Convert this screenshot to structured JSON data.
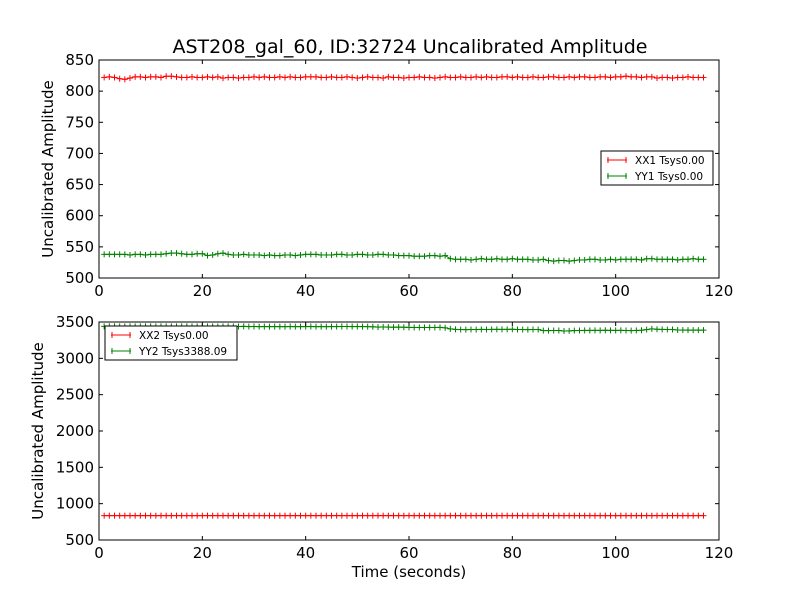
{
  "figure": {
    "title": "AST208_gal_60, ID:32724 Uncalibrated Amplitude"
  },
  "chart_data": [
    {
      "type": "line",
      "title": "AST208_gal_60, ID:32724 Uncalibrated Amplitude",
      "xlabel": "",
      "ylabel": "Uncalibrated Amplitude",
      "xlim": [
        0,
        120
      ],
      "ylim": [
        500,
        850
      ],
      "xticks": [
        0,
        20,
        40,
        60,
        80,
        100,
        120
      ],
      "yticks": [
        500,
        550,
        600,
        650,
        700,
        750,
        800,
        850
      ],
      "grid": false,
      "legend_position": "center-right",
      "marker": "plus",
      "x": [
        1,
        2,
        3,
        4,
        5,
        6,
        7,
        8,
        9,
        10,
        11,
        12,
        13,
        14,
        15,
        16,
        17,
        18,
        19,
        20,
        21,
        22,
        23,
        24,
        25,
        26,
        27,
        28,
        29,
        30,
        31,
        32,
        33,
        34,
        35,
        36,
        37,
        38,
        39,
        40,
        41,
        42,
        43,
        44,
        45,
        46,
        47,
        48,
        49,
        50,
        51,
        52,
        53,
        54,
        55,
        56,
        57,
        58,
        59,
        60,
        61,
        62,
        63,
        64,
        65,
        66,
        67,
        68,
        69,
        70,
        71,
        72,
        73,
        74,
        75,
        76,
        77,
        78,
        79,
        80,
        81,
        82,
        83,
        84,
        85,
        86,
        87,
        88,
        89,
        90,
        91,
        92,
        93,
        94,
        95,
        96,
        97,
        98,
        99,
        100,
        101,
        102,
        103,
        104,
        105,
        106,
        107,
        108,
        109,
        110,
        111,
        112,
        113,
        114,
        115,
        116,
        117
      ],
      "series": [
        {
          "name": "XX1 Tsys0.00",
          "color": "#ff0000",
          "values": [
            822,
            823,
            822,
            820,
            819,
            821,
            823,
            823,
            822,
            823,
            823,
            822,
            824,
            824,
            823,
            822,
            822,
            823,
            822,
            822,
            823,
            822,
            823,
            821,
            822,
            822,
            821,
            822,
            822,
            823,
            822,
            823,
            822,
            822,
            823,
            822,
            823,
            822,
            822,
            823,
            823,
            823,
            822,
            822,
            823,
            822,
            822,
            823,
            822,
            821,
            822,
            823,
            822,
            822,
            821,
            823,
            822,
            822,
            821,
            822,
            822,
            823,
            822,
            822,
            821,
            822,
            823,
            822,
            822,
            823,
            822,
            822,
            823,
            822,
            823,
            822,
            822,
            823,
            823,
            822,
            823,
            822,
            822,
            823,
            822,
            822,
            823,
            823,
            822,
            822,
            823,
            822,
            823,
            823,
            822,
            822,
            823,
            823,
            822,
            823,
            823,
            824,
            823,
            823,
            822,
            823,
            823,
            821,
            822,
            822,
            821,
            822,
            822,
            823,
            822,
            822,
            822
          ]
        },
        {
          "name": "YY1 Tsys0.00",
          "color": "#008000",
          "values": [
            538,
            538,
            538,
            538,
            538,
            537,
            538,
            538,
            537,
            538,
            538,
            538,
            539,
            540,
            540,
            539,
            538,
            538,
            539,
            539,
            536,
            537,
            539,
            540,
            538,
            537,
            537,
            538,
            537,
            537,
            537,
            536,
            537,
            536,
            536,
            537,
            537,
            536,
            537,
            538,
            538,
            538,
            537,
            537,
            537,
            538,
            538,
            537,
            537,
            538,
            538,
            537,
            537,
            538,
            538,
            537,
            537,
            536,
            536,
            536,
            535,
            535,
            535,
            536,
            536,
            535,
            536,
            531,
            530,
            530,
            530,
            529,
            530,
            531,
            530,
            530,
            531,
            530,
            530,
            531,
            530,
            530,
            530,
            529,
            529,
            530,
            528,
            527,
            528,
            528,
            527,
            528,
            529,
            529,
            530,
            530,
            529,
            529,
            530,
            529,
            530,
            530,
            530,
            530,
            529,
            531,
            531,
            530,
            530,
            530,
            530,
            529,
            530,
            530,
            531,
            530,
            530
          ]
        }
      ]
    },
    {
      "type": "line",
      "title": "",
      "xlabel": "Time (seconds)",
      "ylabel": "Uncalibrated Amplitude",
      "xlim": [
        0,
        120
      ],
      "ylim": [
        500,
        3500
      ],
      "xticks": [
        0,
        20,
        40,
        60,
        80,
        100,
        120
      ],
      "yticks": [
        500,
        1000,
        1500,
        2000,
        2500,
        3000,
        3500
      ],
      "grid": false,
      "legend_position": "top-left",
      "marker": "plus",
      "x": [
        1,
        2,
        3,
        4,
        5,
        6,
        7,
        8,
        9,
        10,
        11,
        12,
        13,
        14,
        15,
        16,
        17,
        18,
        19,
        20,
        21,
        22,
        23,
        24,
        25,
        26,
        27,
        28,
        29,
        30,
        31,
        32,
        33,
        34,
        35,
        36,
        37,
        38,
        39,
        40,
        41,
        42,
        43,
        44,
        45,
        46,
        47,
        48,
        49,
        50,
        51,
        52,
        53,
        54,
        55,
        56,
        57,
        58,
        59,
        60,
        61,
        62,
        63,
        64,
        65,
        66,
        67,
        68,
        69,
        70,
        71,
        72,
        73,
        74,
        75,
        76,
        77,
        78,
        79,
        80,
        81,
        82,
        83,
        84,
        85,
        86,
        87,
        88,
        89,
        90,
        91,
        92,
        93,
        94,
        95,
        96,
        97,
        98,
        99,
        100,
        101,
        102,
        103,
        104,
        105,
        106,
        107,
        108,
        109,
        110,
        111,
        112,
        113,
        114,
        115,
        116,
        117
      ],
      "series": [
        {
          "name": "XX2 Tsys0.00",
          "color": "#ff0000",
          "values": [
            835,
            835,
            835,
            835,
            835,
            835,
            835,
            835,
            835,
            835,
            835,
            835,
            835,
            835,
            835,
            835,
            835,
            835,
            835,
            835,
            835,
            835,
            835,
            835,
            835,
            835,
            835,
            835,
            835,
            835,
            835,
            835,
            835,
            835,
            835,
            835,
            835,
            835,
            835,
            835,
            835,
            835,
            835,
            835,
            835,
            835,
            835,
            835,
            835,
            835,
            835,
            835,
            835,
            835,
            835,
            835,
            835,
            835,
            835,
            835,
            835,
            835,
            835,
            835,
            835,
            835,
            835,
            835,
            835,
            835,
            835,
            835,
            835,
            835,
            835,
            835,
            835,
            835,
            835,
            835,
            835,
            835,
            835,
            835,
            835,
            835,
            835,
            835,
            835,
            835,
            835,
            835,
            835,
            835,
            835,
            835,
            835,
            835,
            835,
            835,
            835,
            835,
            835,
            835,
            835,
            835,
            835,
            835,
            835,
            835,
            835,
            835,
            835,
            835,
            835,
            835,
            835
          ]
        },
        {
          "name": "YY2 Tsys3388.09",
          "color": "#008000",
          "values": [
            3440,
            3442,
            3441,
            3440,
            3440,
            3441,
            3440,
            3440,
            3441,
            3441,
            3440,
            3442,
            3441,
            3440,
            3440,
            3441,
            3442,
            3440,
            3440,
            3441,
            3440,
            3440,
            3438,
            3439,
            3440,
            3439,
            3438,
            3440,
            3437,
            3438,
            3436,
            3437,
            3436,
            3437,
            3436,
            3436,
            3437,
            3436,
            3436,
            3437,
            3438,
            3436,
            3436,
            3436,
            3437,
            3437,
            3438,
            3438,
            3437,
            3438,
            3437,
            3436,
            3434,
            3430,
            3432,
            3430,
            3428,
            3430,
            3428,
            3426,
            3425,
            3425,
            3424,
            3425,
            3425,
            3426,
            3420,
            3405,
            3398,
            3396,
            3395,
            3396,
            3396,
            3398,
            3397,
            3398,
            3399,
            3398,
            3399,
            3400,
            3397,
            3396,
            3395,
            3396,
            3396,
            3382,
            3382,
            3383,
            3383,
            3376,
            3378,
            3382,
            3383,
            3384,
            3384,
            3385,
            3384,
            3386,
            3385,
            3384,
            3385,
            3383,
            3382,
            3384,
            3386,
            3396,
            3405,
            3400,
            3398,
            3397,
            3396,
            3390,
            3389,
            3388,
            3388,
            3388,
            3388
          ]
        }
      ]
    }
  ]
}
